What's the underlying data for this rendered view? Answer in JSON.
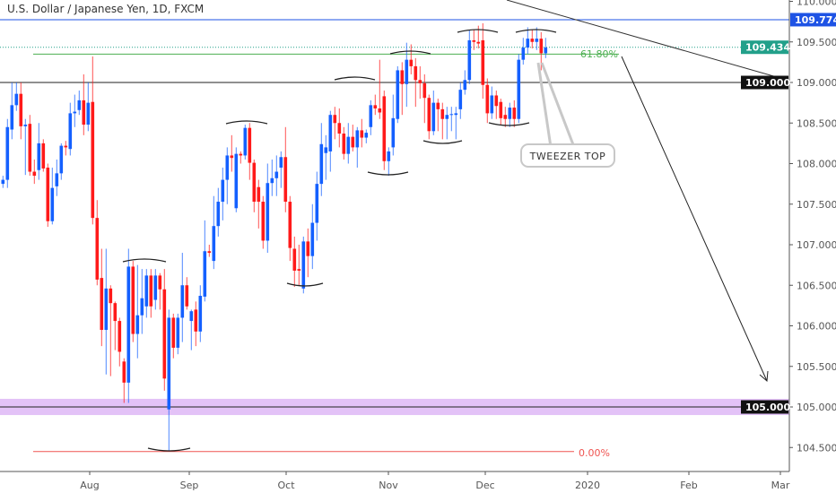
{
  "header": {
    "title": "U.S. Dollar / Japanese Yen, 1D, FXCM"
  },
  "colors": {
    "up": "#1460ff",
    "down": "#ff1a1a",
    "resistance_line": "#1e53e5",
    "last_price": "#22a08a",
    "support_zone": "#dcb3f5",
    "fib_618": "#4caf50",
    "fib_0": "#ef5350"
  },
  "annotations": {
    "callout": "TWEEZER TOP",
    "fib_618_label": "61.80%",
    "fib_0_label": "0.00%"
  },
  "chart_data": {
    "type": "candlestick",
    "title": "U.S. Dollar / Japanese Yen, 1D, FXCM",
    "ylim": [
      104.3,
      110.02
    ],
    "y_ticks": [
      "110.000",
      "109.500",
      "109.000",
      "108.500",
      "108.000",
      "107.500",
      "107.000",
      "106.500",
      "106.000",
      "105.500",
      "105.000",
      "104.500"
    ],
    "x_ticks": [
      "Aug",
      "Sep",
      "Oct",
      "Nov",
      "Dec",
      "2020",
      "Feb",
      "Mar"
    ],
    "levels": {
      "resistance": {
        "value": 109.774,
        "label": "109.774"
      },
      "last_price": {
        "value": 109.434,
        "label": "109.434"
      },
      "key_level": {
        "value": 109.0,
        "label": "109.000"
      },
      "support": {
        "value": 105.0,
        "label": "105.000",
        "zone": [
          104.9,
          105.1
        ]
      },
      "fib_618": 109.35,
      "fib_0": 104.45
    },
    "candles_ohlc": [
      [
        107.75,
        107.85,
        107.7,
        107.8
      ],
      [
        107.8,
        108.55,
        107.7,
        108.45
      ],
      [
        108.42,
        109.0,
        108.3,
        108.72
      ],
      [
        108.72,
        109.0,
        108.65,
        108.86
      ],
      [
        108.86,
        109.0,
        108.3,
        108.46
      ],
      [
        108.46,
        108.55,
        107.86,
        108.48
      ],
      [
        108.49,
        108.6,
        107.85,
        107.9
      ],
      [
        107.9,
        108.05,
        107.75,
        107.85
      ],
      [
        107.92,
        108.5,
        107.8,
        108.25
      ],
      [
        108.25,
        108.3,
        107.9,
        107.94
      ],
      [
        107.95,
        108.0,
        107.22,
        107.29
      ],
      [
        107.29,
        107.95,
        107.25,
        107.7
      ],
      [
        107.72,
        108.05,
        107.6,
        107.88
      ],
      [
        107.88,
        108.25,
        107.8,
        108.22
      ],
      [
        108.22,
        108.28,
        108.1,
        108.2
      ],
      [
        108.18,
        108.75,
        108.1,
        108.62
      ],
      [
        108.62,
        108.85,
        108.45,
        108.64
      ],
      [
        108.66,
        108.9,
        108.6,
        108.78
      ],
      [
        108.78,
        109.1,
        108.35,
        108.48
      ],
      [
        108.48,
        109.0,
        108.4,
        108.75
      ],
      [
        108.76,
        109.32,
        107.25,
        107.33
      ],
      [
        107.33,
        107.55,
        106.5,
        106.57
      ],
      [
        106.59,
        106.95,
        105.75,
        105.95
      ],
      [
        105.95,
        106.95,
        105.4,
        106.46
      ],
      [
        106.46,
        106.5,
        105.38,
        106.28
      ],
      [
        106.28,
        106.3,
        105.7,
        106.06
      ],
      [
        106.06,
        106.1,
        105.5,
        105.68
      ],
      [
        105.56,
        105.6,
        105.05,
        105.3
      ],
      [
        105.3,
        106.95,
        105.05,
        106.73
      ],
      [
        106.73,
        106.8,
        105.8,
        105.9
      ],
      [
        105.9,
        106.75,
        105.6,
        106.13
      ],
      [
        106.13,
        106.7,
        105.9,
        106.34
      ],
      [
        106.24,
        106.7,
        106.1,
        106.62
      ],
      [
        106.62,
        106.7,
        106.1,
        106.24
      ],
      [
        106.32,
        106.7,
        106.2,
        106.62
      ],
      [
        106.62,
        106.65,
        106.2,
        106.45
      ],
      [
        106.45,
        106.7,
        105.2,
        105.35
      ],
      [
        104.97,
        106.2,
        104.46,
        106.1
      ],
      [
        106.1,
        106.15,
        105.6,
        105.73
      ],
      [
        105.73,
        106.15,
        105.65,
        106.1
      ],
      [
        106.1,
        106.9,
        105.8,
        106.5
      ],
      [
        106.5,
        106.6,
        106.2,
        106.24
      ],
      [
        106.06,
        106.2,
        105.7,
        106.18
      ],
      [
        106.2,
        106.3,
        105.75,
        105.93
      ],
      [
        105.93,
        106.5,
        105.8,
        106.37
      ],
      [
        106.36,
        107.3,
        106.3,
        106.92
      ],
      [
        106.92,
        107.0,
        106.85,
        106.9
      ],
      [
        106.8,
        107.6,
        106.7,
        107.23
      ],
      [
        107.23,
        107.7,
        107.1,
        107.53
      ],
      [
        107.53,
        107.95,
        107.3,
        107.8
      ],
      [
        107.8,
        108.2,
        107.5,
        108.1
      ],
      [
        108.1,
        108.35,
        107.9,
        108.07
      ],
      [
        107.45,
        108.2,
        107.4,
        108.12
      ],
      [
        108.12,
        108.15,
        108.0,
        108.1
      ],
      [
        108.1,
        108.48,
        108.05,
        108.44
      ],
      [
        108.44,
        108.5,
        107.8,
        108.01
      ],
      [
        108.01,
        108.05,
        107.4,
        107.53
      ],
      [
        107.71,
        107.8,
        107.2,
        107.53
      ],
      [
        107.53,
        107.6,
        106.95,
        107.05
      ],
      [
        107.05,
        108.0,
        106.9,
        107.76
      ],
      [
        107.76,
        108.05,
        107.6,
        107.82
      ],
      [
        107.82,
        108.1,
        107.6,
        107.9
      ],
      [
        107.95,
        108.15,
        107.7,
        108.08
      ],
      [
        108.08,
        108.45,
        107.4,
        107.53
      ],
      [
        107.53,
        107.6,
        106.8,
        106.96
      ],
      [
        106.95,
        107.1,
        106.48,
        106.68
      ],
      [
        106.7,
        107.0,
        106.5,
        106.68
      ],
      [
        106.46,
        107.1,
        106.4,
        107.04
      ],
      [
        107.04,
        107.2,
        106.6,
        106.86
      ],
      [
        106.86,
        107.5,
        106.7,
        107.27
      ],
      [
        107.27,
        107.9,
        107.05,
        107.75
      ],
      [
        107.75,
        108.5,
        107.6,
        108.24
      ],
      [
        108.13,
        108.35,
        107.8,
        108.2
      ],
      [
        108.15,
        108.65,
        107.9,
        108.6
      ],
      [
        108.6,
        108.7,
        108.3,
        108.5
      ],
      [
        108.5,
        108.68,
        108.2,
        108.37
      ],
      [
        108.37,
        108.45,
        108.05,
        108.12
      ],
      [
        108.12,
        108.5,
        108.0,
        108.33
      ],
      [
        108.33,
        108.48,
        108.15,
        108.2
      ],
      [
        108.2,
        108.45,
        107.95,
        108.41
      ],
      [
        108.41,
        108.55,
        108.2,
        108.32
      ],
      [
        108.32,
        108.42,
        108.25,
        108.38
      ],
      [
        108.45,
        108.78,
        108.35,
        108.72
      ],
      [
        108.72,
        108.85,
        108.6,
        108.68
      ],
      [
        108.68,
        109.28,
        108.55,
        108.63
      ],
      [
        108.83,
        108.9,
        107.92,
        108.03
      ],
      [
        108.03,
        108.2,
        107.85,
        108.15
      ],
      [
        108.2,
        108.85,
        108.1,
        108.56
      ],
      [
        108.55,
        109.2,
        108.5,
        109.15
      ],
      [
        109.15,
        109.25,
        108.6,
        108.98
      ],
      [
        108.98,
        109.49,
        108.7,
        109.28
      ],
      [
        109.28,
        109.47,
        109.1,
        109.2
      ],
      [
        109.2,
        109.3,
        108.7,
        109.03
      ],
      [
        109.03,
        109.2,
        108.8,
        108.99
      ],
      [
        108.99,
        109.1,
        108.5,
        108.81
      ],
      [
        108.81,
        108.85,
        108.3,
        108.4
      ],
      [
        108.4,
        108.9,
        108.35,
        108.75
      ],
      [
        108.75,
        108.8,
        108.4,
        108.67
      ],
      [
        108.67,
        108.75,
        108.3,
        108.55
      ],
      [
        108.55,
        108.7,
        108.3,
        108.6
      ],
      [
        108.6,
        108.7,
        108.4,
        108.61
      ],
      [
        108.6,
        108.7,
        108.3,
        108.62
      ],
      [
        108.67,
        109.0,
        108.55,
        108.91
      ],
      [
        108.91,
        109.15,
        108.85,
        109.03
      ],
      [
        109.03,
        109.65,
        108.98,
        109.52
      ],
      [
        109.52,
        109.65,
        109.4,
        109.5
      ],
      [
        109.5,
        109.7,
        109.42,
        109.48
      ],
      [
        109.52,
        109.73,
        108.8,
        108.97
      ],
      [
        108.97,
        109.05,
        108.5,
        108.62
      ],
      [
        108.62,
        108.95,
        108.55,
        108.84
      ],
      [
        108.84,
        108.9,
        108.55,
        108.71
      ],
      [
        108.76,
        108.8,
        108.48,
        108.56
      ],
      [
        108.6,
        108.7,
        108.45,
        108.55
      ],
      [
        108.55,
        108.75,
        108.45,
        108.69
      ],
      [
        108.69,
        108.78,
        108.45,
        108.55
      ],
      [
        108.55,
        109.35,
        108.5,
        109.28
      ],
      [
        109.28,
        109.55,
        109.22,
        109.43
      ],
      [
        109.43,
        109.68,
        109.35,
        109.54
      ],
      [
        109.54,
        109.65,
        109.42,
        109.5
      ],
      [
        109.5,
        109.68,
        109.4,
        109.54
      ],
      [
        109.54,
        109.62,
        109.15,
        109.36
      ],
      [
        109.36,
        109.55,
        109.3,
        109.43
      ]
    ]
  }
}
